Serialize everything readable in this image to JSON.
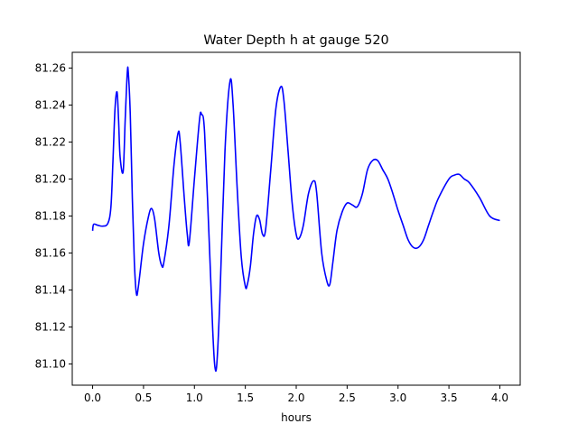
{
  "chart_data": {
    "type": "line",
    "title": "Water Depth h at gauge 520",
    "xlabel": "hours",
    "ylabel": "",
    "xlim": [
      -0.2,
      4.2
    ],
    "ylim": [
      81.0885,
      81.2685
    ],
    "grid": false,
    "legend": "none",
    "x_ticks": [
      0.0,
      0.5,
      1.0,
      1.5,
      2.0,
      2.5,
      3.0,
      3.5,
      4.0
    ],
    "x_tick_labels": [
      "0.0",
      "0.5",
      "1.0",
      "1.5",
      "2.0",
      "2.5",
      "3.0",
      "3.5",
      "4.0"
    ],
    "y_ticks": [
      81.1,
      81.12,
      81.14,
      81.16,
      81.18,
      81.2,
      81.22,
      81.24,
      81.26
    ],
    "y_tick_labels": [
      "81.10",
      "81.12",
      "81.14",
      "81.16",
      "81.18",
      "81.20",
      "81.22",
      "81.24",
      "81.26"
    ],
    "series": [
      {
        "color": "#0000ff",
        "x": [
          0.0,
          0.01,
          0.05,
          0.1,
          0.15,
          0.18,
          0.2,
          0.22,
          0.24,
          0.255,
          0.27,
          0.3,
          0.32,
          0.34,
          0.35,
          0.37,
          0.39,
          0.41,
          0.43,
          0.45,
          0.5,
          0.55,
          0.58,
          0.61,
          0.65,
          0.68,
          0.7,
          0.75,
          0.8,
          0.84,
          0.86,
          0.9,
          0.93,
          0.95,
          1.0,
          1.05,
          1.07,
          1.1,
          1.15,
          1.18,
          1.2,
          1.22,
          1.25,
          1.3,
          1.35,
          1.38,
          1.42,
          1.46,
          1.5,
          1.52,
          1.55,
          1.58,
          1.61,
          1.64,
          1.67,
          1.7,
          1.75,
          1.8,
          1.85,
          1.88,
          1.92,
          1.96,
          2.0,
          2.03,
          2.07,
          2.12,
          2.17,
          2.2,
          2.25,
          2.3,
          2.33,
          2.36,
          2.4,
          2.45,
          2.5,
          2.55,
          2.6,
          2.65,
          2.7,
          2.75,
          2.8,
          2.85,
          2.9,
          2.95,
          3.0,
          3.05,
          3.1,
          3.15,
          3.2,
          3.25,
          3.3,
          3.35,
          3.4,
          3.5,
          3.55,
          3.6,
          3.65,
          3.7,
          3.8,
          3.9,
          4.0
        ],
        "y": [
          81.172,
          81.1755,
          81.175,
          81.1745,
          81.176,
          81.185,
          81.21,
          81.238,
          81.247,
          81.232,
          81.212,
          81.204,
          81.232,
          81.257,
          81.258,
          81.235,
          81.19,
          81.155,
          81.138,
          81.142,
          81.165,
          81.18,
          81.184,
          81.178,
          81.16,
          81.153,
          81.155,
          81.175,
          81.208,
          81.225,
          81.22,
          81.19,
          81.17,
          81.166,
          81.2,
          81.232,
          81.235,
          81.225,
          81.16,
          81.118,
          81.099,
          81.1,
          81.135,
          81.215,
          81.253,
          81.24,
          81.195,
          81.158,
          81.142,
          81.143,
          81.153,
          81.17,
          81.18,
          81.178,
          81.17,
          81.173,
          81.205,
          81.238,
          81.25,
          81.242,
          81.215,
          81.187,
          81.17,
          81.168,
          81.175,
          81.192,
          81.199,
          81.193,
          81.16,
          81.145,
          81.143,
          81.155,
          81.172,
          81.182,
          81.187,
          81.186,
          81.185,
          81.192,
          81.205,
          81.21,
          81.21,
          81.205,
          81.2,
          81.192,
          81.183,
          81.175,
          81.167,
          81.163,
          81.163,
          81.167,
          81.175,
          81.183,
          81.19,
          81.2,
          81.202,
          81.2025,
          81.2,
          81.198,
          81.19,
          81.18,
          81.1775
        ]
      }
    ]
  }
}
